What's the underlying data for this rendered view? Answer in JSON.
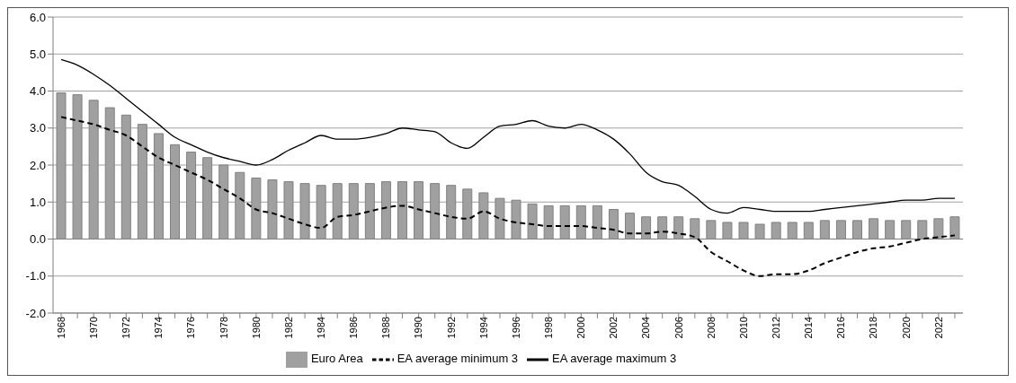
{
  "chart_data": {
    "type": "bar",
    "categories": [
      "1968",
      null,
      "1970",
      null,
      "1972",
      null,
      "1974",
      null,
      "1976",
      null,
      "1978",
      null,
      "1980",
      null,
      "1982",
      null,
      "1984",
      null,
      "1986",
      null,
      "1988",
      null,
      "1990",
      null,
      "1992",
      null,
      "1994",
      null,
      "1996",
      null,
      "1998",
      null,
      "2000",
      null,
      "2002",
      null,
      "2004",
      null,
      "2006",
      null,
      "2008",
      null,
      "2010",
      null,
      "2012",
      null,
      "2014",
      null,
      "2016",
      null,
      "2018",
      null,
      "2020",
      null,
      "2022",
      null
    ],
    "series": [
      {
        "name": "Euro Area",
        "color": "#a0a0a0",
        "values": [
          3.95,
          3.9,
          3.75,
          3.55,
          3.35,
          3.1,
          2.85,
          2.55,
          2.35,
          2.2,
          2.0,
          1.8,
          1.65,
          1.6,
          1.55,
          1.5,
          1.45,
          1.5,
          1.5,
          1.5,
          1.55,
          1.55,
          1.55,
          1.5,
          1.45,
          1.35,
          1.25,
          1.1,
          1.05,
          0.95,
          0.9,
          0.9,
          0.9,
          0.9,
          0.8,
          0.7,
          0.6,
          0.6,
          0.6,
          0.55,
          0.5,
          0.45,
          0.45,
          0.4,
          0.45,
          0.45,
          0.45,
          0.5,
          0.5,
          0.5,
          0.55,
          0.5,
          0.5,
          0.5,
          0.55,
          0.6
        ]
      },
      {
        "name": "EA average minimum 3",
        "type": "line",
        "line_style": "dashed",
        "color": "#000000",
        "values": [
          3.3,
          3.2,
          3.1,
          2.95,
          2.8,
          2.5,
          2.2,
          2.0,
          1.8,
          1.6,
          1.35,
          1.1,
          0.8,
          0.7,
          0.55,
          0.4,
          0.3,
          0.6,
          0.65,
          0.75,
          0.85,
          0.9,
          0.8,
          0.7,
          0.6,
          0.55,
          0.75,
          0.55,
          0.45,
          0.4,
          0.35,
          0.35,
          0.35,
          0.3,
          0.25,
          0.15,
          0.15,
          0.2,
          0.15,
          0.05,
          -0.35,
          -0.6,
          -0.85,
          -1.0,
          -0.95,
          -0.95,
          -0.85,
          -0.65,
          -0.5,
          -0.35,
          -0.25,
          -0.2,
          -0.1,
          0.0,
          0.05,
          0.1
        ]
      },
      {
        "name": "EA average maximum 3",
        "type": "line",
        "line_style": "solid",
        "color": "#000000",
        "values": [
          4.85,
          4.7,
          4.45,
          4.15,
          3.8,
          3.45,
          3.1,
          2.75,
          2.55,
          2.35,
          2.2,
          2.1,
          2.0,
          2.15,
          2.4,
          2.6,
          2.8,
          2.7,
          2.7,
          2.75,
          2.85,
          3.0,
          2.95,
          2.9,
          2.6,
          2.45,
          2.75,
          3.05,
          3.1,
          3.2,
          3.05,
          3.0,
          3.1,
          2.95,
          2.7,
          2.3,
          1.8,
          1.55,
          1.45,
          1.15,
          0.8,
          0.7,
          0.85,
          0.8,
          0.75,
          0.75,
          0.75,
          0.8,
          0.85,
          0.9,
          0.95,
          1.0,
          1.05,
          1.05,
          1.1,
          1.1
        ]
      }
    ],
    "ylim": [
      -2,
      6
    ],
    "yticks": [
      {
        "value": -2,
        "label": "-2.0"
      },
      {
        "value": -1,
        "label": "-1.0"
      },
      {
        "value": 0,
        "label": "0.0"
      },
      {
        "value": 1,
        "label": "1.0"
      },
      {
        "value": 2,
        "label": "2.0"
      },
      {
        "value": 3,
        "label": "3.0"
      },
      {
        "value": 4,
        "label": "4.0"
      },
      {
        "value": 5,
        "label": "5.0"
      },
      {
        "value": 6,
        "label": "6.0"
      }
    ],
    "grid": "y",
    "legend": "bottom",
    "marker": "none"
  }
}
